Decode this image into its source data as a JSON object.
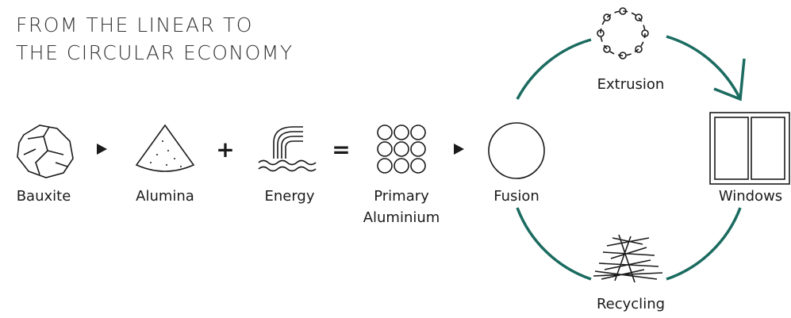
{
  "title": {
    "lines": [
      "FROM THE LINEAR TO",
      "THE CIRCULAR ECONOMY"
    ]
  },
  "linear": {
    "nodes": [
      {
        "label": [
          "Bauxite"
        ]
      },
      {
        "label": [
          "Alumina"
        ]
      },
      {
        "label": [
          "Energy"
        ]
      },
      {
        "label": [
          "Primary",
          "Aluminium"
        ]
      }
    ],
    "operators": [
      "+",
      "="
    ]
  },
  "cycle": {
    "nodes": [
      {
        "label": [
          "Fusion"
        ]
      },
      {
        "label": [
          "Extrusion"
        ]
      },
      {
        "label": [
          "Windows"
        ]
      },
      {
        "label": [
          "Recycling"
        ]
      }
    ]
  }
}
